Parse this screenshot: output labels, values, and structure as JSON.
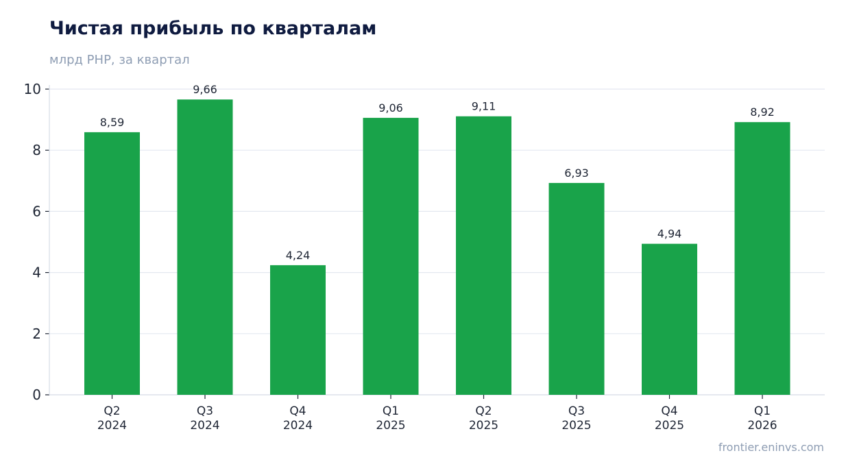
{
  "chart_data": {
    "type": "bar",
    "title": "Чистая прибыль по кварталам",
    "subtitle": "млрд PHP, за квартал",
    "categories": [
      [
        "Q2",
        "2024"
      ],
      [
        "Q3",
        "2024"
      ],
      [
        "Q4",
        "2024"
      ],
      [
        "Q1",
        "2025"
      ],
      [
        "Q2",
        "2025"
      ],
      [
        "Q3",
        "2025"
      ],
      [
        "Q4",
        "2025"
      ],
      [
        "Q1",
        "2026"
      ]
    ],
    "values": [
      8.59,
      9.66,
      4.24,
      9.06,
      9.11,
      6.93,
      4.94,
      8.92
    ],
    "value_labels": [
      "8,59",
      "9,66",
      "4,24",
      "9,06",
      "9,11",
      "6,93",
      "4,94",
      "8,92"
    ],
    "ylim": [
      0,
      10
    ],
    "yticks": [
      0,
      2,
      4,
      6,
      8,
      10
    ],
    "grid": true,
    "bar_color": "#19a34a",
    "xlabel": "",
    "ylabel": ""
  },
  "source": "frontier.eninvs.com"
}
